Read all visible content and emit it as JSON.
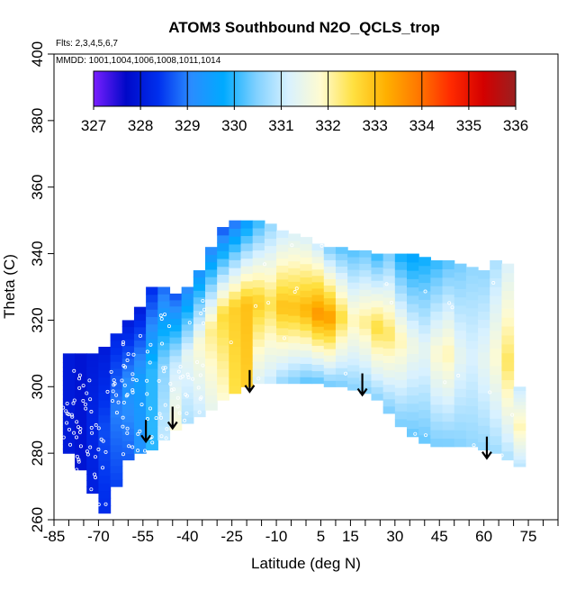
{
  "chart_data": {
    "type": "heatmap",
    "title": "ATOM3 Southbound N2O_QCLS_trop",
    "annotations": [
      "Flts: 2,3,4,5,6,7",
      "MMDD: 1001,1004,1006,1008,1011,1014"
    ],
    "xlabel": "Latitude (deg N)",
    "ylabel": "Theta (C)",
    "xlim": [
      -85,
      85
    ],
    "ylim": [
      260,
      400
    ],
    "x_tick_labels": [
      "-85",
      "-70",
      "-55",
      "-40",
      "-25",
      "-10",
      "5",
      "15",
      "30",
      "45",
      "60",
      "75"
    ],
    "y_tick_labels": [
      "260",
      "280",
      "300",
      "320",
      "340",
      "360",
      "380",
      "400"
    ],
    "colorbar": {
      "range": [
        327,
        336
      ],
      "labels": [
        "327",
        "328",
        "329",
        "330",
        "331",
        "332",
        "333",
        "334",
        "335",
        "336"
      ],
      "colors": [
        "#7a1fff",
        "#0008c8",
        "#0030ee",
        "#2a8cff",
        "#00aaff",
        "#7fd0ff",
        "#d8f1ff",
        "#fffbd0",
        "#ffe040",
        "#ffb000",
        "#ff7800",
        "#ff2a00",
        "#d40000",
        "#9a2020"
      ]
    },
    "arrows": [
      {
        "lat": -54,
        "theta": 290
      },
      {
        "lat": -45,
        "theta": 294
      },
      {
        "lat": -19,
        "theta": 305
      },
      {
        "lat": 19,
        "theta": 304
      },
      {
        "lat": 61,
        "theta": 285
      }
    ],
    "curtain": {
      "lat": [
        -80,
        -76,
        -72,
        -68,
        -64,
        -60,
        -56,
        -52,
        -48,
        -44,
        -40,
        -36,
        -32,
        -28,
        -24,
        -20,
        -16,
        -12,
        -8,
        -4,
        0,
        4,
        8,
        12,
        16,
        20,
        24,
        28,
        32,
        36,
        40,
        44,
        48,
        52,
        56,
        60,
        64,
        68,
        72
      ],
      "theta_bottom": [
        280,
        275,
        268,
        262,
        270,
        278,
        280,
        281,
        284,
        287,
        289,
        291,
        293,
        296,
        298,
        300,
        301,
        301,
        301,
        301,
        301,
        301,
        300,
        300,
        299,
        298,
        296,
        292,
        288,
        285,
        283,
        282,
        282,
        282,
        282,
        281,
        280,
        278,
        276
      ],
      "theta_top": [
        310,
        310,
        310,
        312,
        316,
        320,
        324,
        330,
        330,
        328,
        330,
        335,
        342,
        348,
        350,
        350,
        350,
        349,
        347,
        346,
        345,
        343,
        342,
        342,
        341,
        341,
        340,
        340,
        340,
        340,
        339,
        338,
        338,
        337,
        336,
        335,
        338,
        337,
        300
      ],
      "n2o_bottom": [
        328.0,
        327.9,
        328.1,
        328.3,
        328.5,
        328.7,
        329.2,
        330.0,
        331.0,
        331.8,
        330.8,
        331.0,
        331.4,
        331.8,
        332.5,
        332.8,
        331.2,
        331.0,
        330.6,
        330.4,
        330.2,
        330.2,
        330.3,
        330.4,
        330.5,
        330.5,
        330.5,
        330.4,
        330.4,
        330.3,
        330.3,
        330.4,
        330.4,
        330.5,
        330.6,
        330.6,
        330.7,
        330.8,
        330.9
      ],
      "n2o_mid": [
        328.0,
        327.9,
        328.2,
        328.6,
        329.0,
        329.3,
        329.5,
        330.0,
        330.5,
        331.0,
        331.4,
        331.8,
        332.2,
        332.6,
        332.8,
        333.0,
        332.8,
        332.5,
        333.0,
        333.0,
        333.2,
        333.6,
        333.5,
        332.6,
        332.0,
        332.2,
        332.6,
        332.4,
        332.0,
        331.6,
        331.4,
        331.8,
        332.0,
        331.4,
        331.2,
        331.4,
        331.8,
        332.4,
        332.0
      ],
      "n2o_top": [
        328.0,
        327.9,
        328.0,
        328.0,
        328.2,
        328.0,
        328.0,
        328.3,
        328.8,
        328.6,
        329.0,
        329.2,
        329.0,
        328.6,
        328.8,
        329.4,
        330.0,
        330.6,
        331.0,
        331.2,
        331.2,
        331.0,
        330.4,
        330.2,
        330.2,
        330.3,
        330.0,
        330.4,
        329.8,
        329.6,
        329.8,
        330.0,
        330.2,
        330.4,
        330.6,
        330.6,
        330.8,
        331.2,
        331.0
      ]
    }
  }
}
